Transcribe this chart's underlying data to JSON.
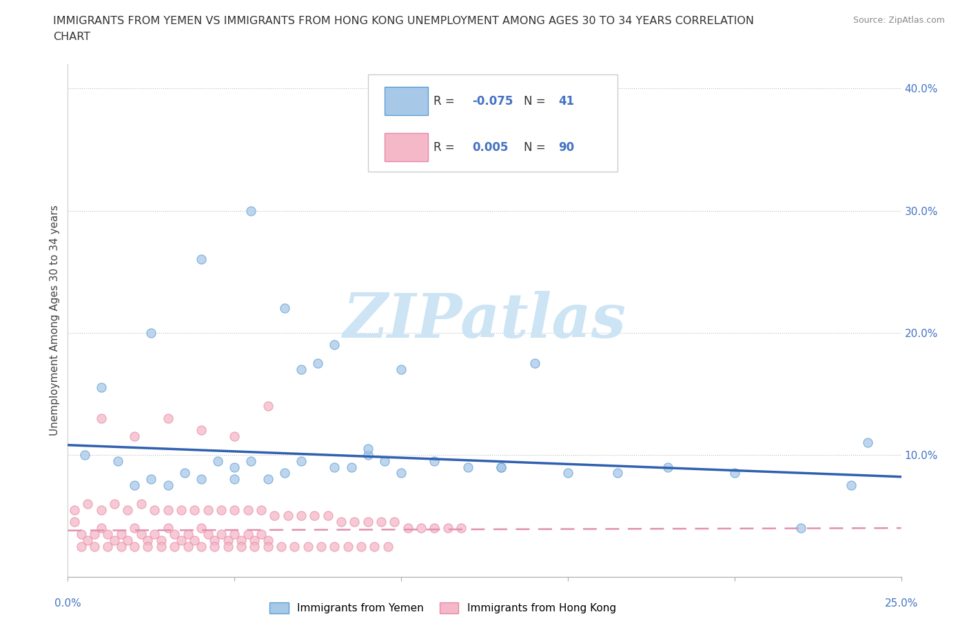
{
  "title_line1": "IMMIGRANTS FROM YEMEN VS IMMIGRANTS FROM HONG KONG UNEMPLOYMENT AMONG AGES 30 TO 34 YEARS CORRELATION",
  "title_line2": "CHART",
  "source_text": "Source: ZipAtlas.com",
  "ylabel": "Unemployment Among Ages 30 to 34 years",
  "xlim": [
    0.0,
    0.25
  ],
  "ylim": [
    0.0,
    0.42
  ],
  "yticks": [
    0.1,
    0.2,
    0.3,
    0.4
  ],
  "ytick_labels": [
    "10.0%",
    "20.0%",
    "30.0%",
    "40.0%"
  ],
  "legend_r_yemen": "-0.075",
  "legend_n_yemen": "41",
  "legend_r_hk": "0.005",
  "legend_n_hk": "90",
  "yemen_color": "#a8c8e8",
  "hk_color": "#f4b8c8",
  "yemen_edge_color": "#5a9fd4",
  "hk_edge_color": "#e888a8",
  "yemen_line_color": "#3060b0",
  "hk_line_color": "#e090b0",
  "watermark": "ZIPatlas",
  "watermark_color": "#cce4f4",
  "yemen_x": [
    0.005,
    0.01,
    0.015,
    0.02,
    0.025,
    0.03,
    0.035,
    0.04,
    0.045,
    0.05,
    0.055,
    0.06,
    0.065,
    0.07,
    0.075,
    0.08,
    0.09,
    0.095,
    0.1,
    0.11,
    0.12,
    0.13,
    0.14,
    0.15,
    0.165,
    0.18,
    0.2,
    0.22,
    0.235,
    0.24,
    0.025,
    0.04,
    0.05,
    0.055,
    0.065,
    0.07,
    0.08,
    0.085,
    0.09,
    0.1,
    0.13
  ],
  "yemen_y": [
    0.1,
    0.155,
    0.095,
    0.075,
    0.08,
    0.075,
    0.085,
    0.08,
    0.095,
    0.08,
    0.095,
    0.08,
    0.085,
    0.095,
    0.175,
    0.09,
    0.1,
    0.095,
    0.085,
    0.095,
    0.09,
    0.09,
    0.175,
    0.085,
    0.085,
    0.09,
    0.085,
    0.04,
    0.075,
    0.11,
    0.2,
    0.26,
    0.09,
    0.3,
    0.22,
    0.17,
    0.19,
    0.09,
    0.105,
    0.17,
    0.09
  ],
  "hk_x": [
    0.002,
    0.004,
    0.006,
    0.008,
    0.01,
    0.012,
    0.014,
    0.016,
    0.018,
    0.02,
    0.022,
    0.024,
    0.026,
    0.028,
    0.03,
    0.032,
    0.034,
    0.036,
    0.038,
    0.04,
    0.042,
    0.044,
    0.046,
    0.048,
    0.05,
    0.052,
    0.054,
    0.056,
    0.058,
    0.06,
    0.002,
    0.006,
    0.01,
    0.014,
    0.018,
    0.022,
    0.026,
    0.03,
    0.034,
    0.038,
    0.042,
    0.046,
    0.05,
    0.054,
    0.058,
    0.062,
    0.066,
    0.07,
    0.074,
    0.078,
    0.082,
    0.086,
    0.09,
    0.094,
    0.098,
    0.102,
    0.106,
    0.11,
    0.114,
    0.118,
    0.004,
    0.008,
    0.012,
    0.016,
    0.02,
    0.024,
    0.028,
    0.032,
    0.036,
    0.04,
    0.044,
    0.048,
    0.052,
    0.056,
    0.06,
    0.064,
    0.068,
    0.072,
    0.076,
    0.08,
    0.084,
    0.088,
    0.092,
    0.096,
    0.01,
    0.02,
    0.03,
    0.04,
    0.05,
    0.06
  ],
  "hk_y": [
    0.045,
    0.035,
    0.03,
    0.035,
    0.04,
    0.035,
    0.03,
    0.035,
    0.03,
    0.04,
    0.035,
    0.03,
    0.035,
    0.03,
    0.04,
    0.035,
    0.03,
    0.035,
    0.03,
    0.04,
    0.035,
    0.03,
    0.035,
    0.03,
    0.035,
    0.03,
    0.035,
    0.03,
    0.035,
    0.03,
    0.055,
    0.06,
    0.055,
    0.06,
    0.055,
    0.06,
    0.055,
    0.055,
    0.055,
    0.055,
    0.055,
    0.055,
    0.055,
    0.055,
    0.055,
    0.05,
    0.05,
    0.05,
    0.05,
    0.05,
    0.045,
    0.045,
    0.045,
    0.045,
    0.045,
    0.04,
    0.04,
    0.04,
    0.04,
    0.04,
    0.025,
    0.025,
    0.025,
    0.025,
    0.025,
    0.025,
    0.025,
    0.025,
    0.025,
    0.025,
    0.025,
    0.025,
    0.025,
    0.025,
    0.025,
    0.025,
    0.025,
    0.025,
    0.025,
    0.025,
    0.025,
    0.025,
    0.025,
    0.025,
    0.13,
    0.115,
    0.13,
    0.12,
    0.115,
    0.14
  ],
  "yemen_trend_x": [
    0.0,
    0.25
  ],
  "yemen_trend_y": [
    0.108,
    0.082
  ],
  "hk_trend_x": [
    0.0,
    0.25
  ],
  "hk_trend_y": [
    0.038,
    0.04
  ]
}
